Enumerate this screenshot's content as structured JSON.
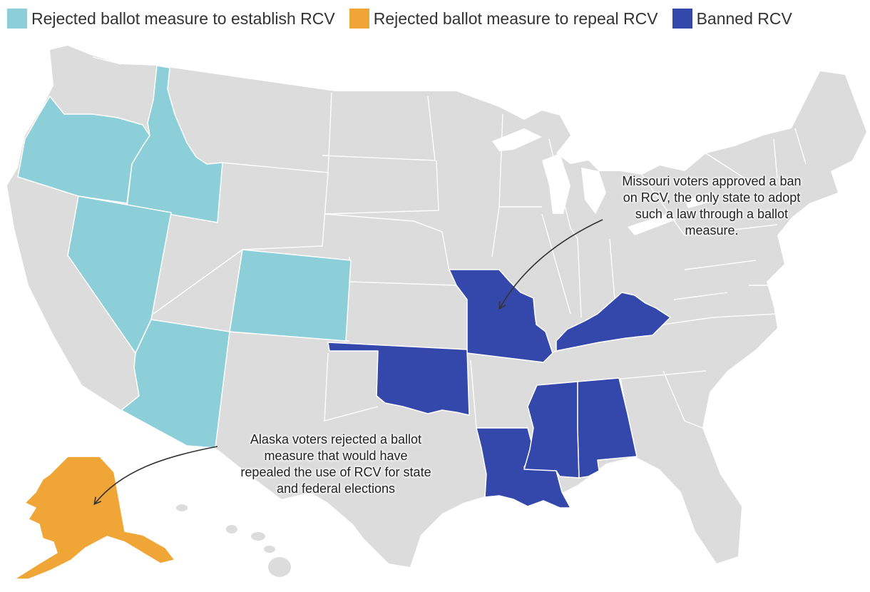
{
  "colors": {
    "establish_rejected": "#8ccfd8",
    "repeal_rejected": "#f0a537",
    "banned": "#3447ab",
    "other": "#dcdcdc",
    "border": "#ffffff"
  },
  "legend": {
    "items": [
      {
        "label": "Rejected ballot measure to establish RCV",
        "color": "#8ccfd8"
      },
      {
        "label": "Rejected ballot measure to repeal RCV",
        "color": "#f0a537"
      },
      {
        "label": "Banned RCV",
        "color": "#3447ab"
      }
    ]
  },
  "states": {
    "rejected_establish": [
      "Oregon",
      "Idaho",
      "Nevada",
      "Colorado",
      "Arizona"
    ],
    "rejected_repeal": [
      "Alaska"
    ],
    "banned": [
      "Missouri",
      "Oklahoma",
      "Kentucky",
      "Louisiana",
      "Mississippi",
      "Alabama"
    ]
  },
  "annotations": {
    "missouri": {
      "lines": [
        "Missouri voters approved a ban",
        "on RCV, the only state to adopt",
        "such a law through a ballot",
        "measure."
      ]
    },
    "alaska": {
      "lines": [
        "Alaska voters rejected a ballot",
        "measure that would have",
        "repealed the use of RCV for state",
        "and federal elections"
      ]
    }
  }
}
